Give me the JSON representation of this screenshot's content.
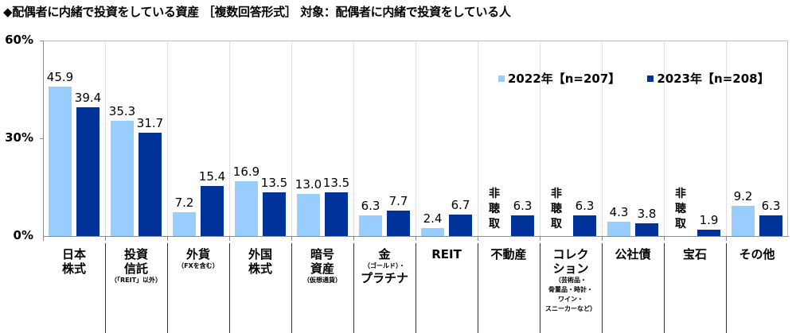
{
  "title": "◆配偶者に内緒で投資をしている資産 ［複数回答形式］ 対象：配偶者に内緒で投資をしている人",
  "legend": {
    "items": [
      {
        "label": "2022年【n=207】",
        "color": "#99ccff"
      },
      {
        "label": "2023年【n=208】",
        "color": "#003399"
      }
    ]
  },
  "yaxis": {
    "ticks": [
      "60%",
      "30%",
      "0%"
    ]
  },
  "categories": [
    {
      "main": "日本\n株式",
      "sub": ""
    },
    {
      "main": "投資\n信託",
      "sub": "（「REIT」以外）"
    },
    {
      "main": "外貨",
      "sub": "（FXを含む）"
    },
    {
      "main": "外国\n株式",
      "sub": ""
    },
    {
      "main": "暗号\n資産",
      "sub": "（仮想通貨）"
    },
    {
      "main": "金",
      "sub": "（ゴールド）・",
      "main2": "プラチナ"
    },
    {
      "main": "REIT",
      "sub": ""
    },
    {
      "main": "不動産",
      "sub": ""
    },
    {
      "main": "コレク\nション",
      "sub": "（芸術品・\n骨董品・時計・\nワイン・\nスニーカーなど）"
    },
    {
      "main": "公社債",
      "sub": ""
    },
    {
      "main": "宝石",
      "sub": ""
    },
    {
      "main": "その他",
      "sub": ""
    }
  ],
  "not_asked_label": "非\n聴\n取",
  "chart_data": {
    "type": "bar",
    "title": "◆配偶者に内緒で投資をしている資産 ［複数回答形式］ 対象：配偶者に内緒で投資をしている人",
    "categories": [
      "日本株式",
      "投資信託（「REIT」以外）",
      "外貨（FXを含む）",
      "外国株式",
      "暗号資産（仮想通貨）",
      "金（ゴールド）・プラチナ",
      "REIT",
      "不動産",
      "コレクション（芸術品・骨董品・時計・ワイン・スニーカーなど）",
      "公社債",
      "宝石",
      "その他"
    ],
    "series": [
      {
        "name": "2022年【n=207】",
        "color": "#99ccff",
        "values": [
          45.9,
          35.3,
          7.2,
          16.9,
          13.0,
          6.3,
          2.4,
          null,
          null,
          4.3,
          null,
          9.2
        ]
      },
      {
        "name": "2023年【n=208】",
        "color": "#003399",
        "values": [
          39.4,
          31.7,
          15.4,
          13.5,
          13.5,
          7.7,
          6.7,
          6.3,
          6.3,
          3.8,
          1.9,
          6.3
        ]
      }
    ],
    "annotations": [
      "非聴取 (not asked in 2022) for 不動産, コレクション, 宝石"
    ],
    "xlabel": "",
    "ylabel": "",
    "ylim": [
      0,
      60
    ],
    "yticks": [
      "0%",
      "30%",
      "60%"
    ],
    "grid": "vertical dotted category separators",
    "legend_position": "top-right inside plot"
  }
}
